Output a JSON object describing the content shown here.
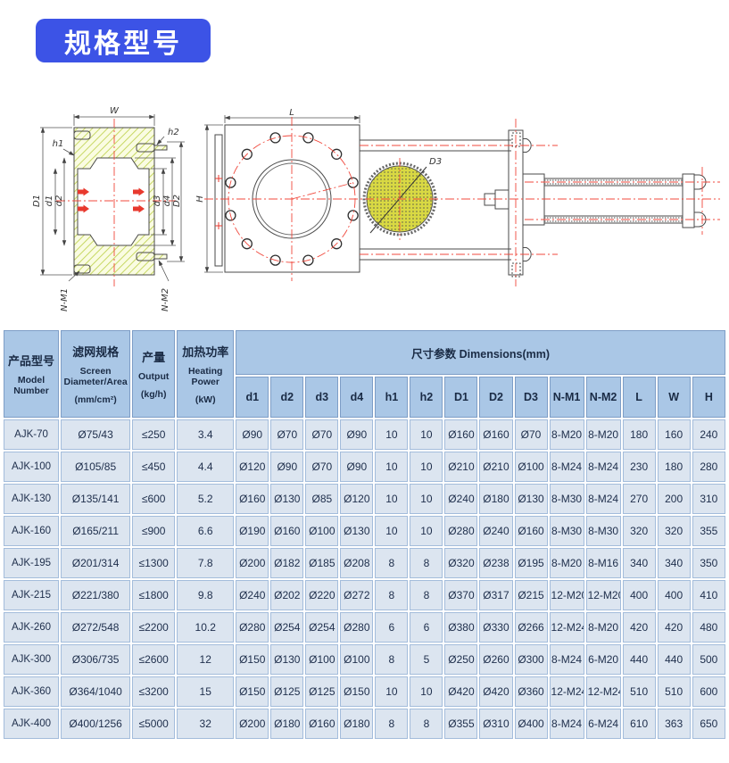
{
  "page": {
    "title": "规格型号"
  },
  "colors": {
    "title_bg": "#3c53e6",
    "table_header_bg": "#aac7e6",
    "table_cell_bg": "#dce5f0",
    "centerline_red": "#f0483c",
    "hatch_green": "#bfd24e",
    "screen_yellow": "#d9d943"
  },
  "drawing": {
    "labels": {
      "w": "W",
      "h1": "h1",
      "h2": "h2",
      "D1": "D1",
      "d1": "d1",
      "d2": "d2",
      "d3": "d3",
      "d4": "d4",
      "D2": "D2",
      "nm1": "N-M1",
      "nm2": "N-M2",
      "l": "L",
      "h": "H",
      "D3": "D3"
    }
  },
  "table": {
    "headers": {
      "model_zh": "产品型号",
      "model_en": "Model Number",
      "screen_zh": "滤网规格",
      "screen_en": "Screen Diameter/Area",
      "screen_unit": "(mm/cm²)",
      "output_zh": "产量",
      "output_en": "Output",
      "output_unit": "(kg/h)",
      "heating_zh": "加热功率",
      "heating_en": "Heating Power",
      "heating_unit": "(kW)",
      "dimensions": "尺寸参数 Dimensions(mm)"
    },
    "dim_columns": [
      "d1",
      "d2",
      "d3",
      "d4",
      "h1",
      "h2",
      "D1",
      "D2",
      "D3",
      "N-M1",
      "N-M2",
      "L",
      "W",
      "H"
    ],
    "rows": [
      [
        "AJK-70",
        "Ø75/43",
        "≤250",
        "3.4",
        "Ø90",
        "Ø70",
        "Ø70",
        "Ø90",
        "10",
        "10",
        "Ø160",
        "Ø160",
        "Ø70",
        "8-M20",
        "8-M20",
        "180",
        "160",
        "240"
      ],
      [
        "AJK-100",
        "Ø105/85",
        "≤450",
        "4.4",
        "Ø120",
        "Ø90",
        "Ø70",
        "Ø90",
        "10",
        "10",
        "Ø210",
        "Ø210",
        "Ø100",
        "8-M24",
        "8-M24",
        "230",
        "180",
        "280"
      ],
      [
        "AJK-130",
        "Ø135/141",
        "≤600",
        "5.2",
        "Ø160",
        "Ø130",
        "Ø85",
        "Ø120",
        "10",
        "10",
        "Ø240",
        "Ø180",
        "Ø130",
        "8-M30",
        "8-M24",
        "270",
        "200",
        "310"
      ],
      [
        "AJK-160",
        "Ø165/211",
        "≤900",
        "6.6",
        "Ø190",
        "Ø160",
        "Ø100",
        "Ø130",
        "10",
        "10",
        "Ø280",
        "Ø240",
        "Ø160",
        "8-M30",
        "8-M30",
        "320",
        "320",
        "355"
      ],
      [
        "AJK-195",
        "Ø201/314",
        "≤1300",
        "7.8",
        "Ø200",
        "Ø182",
        "Ø185",
        "Ø208",
        "8",
        "8",
        "Ø320",
        "Ø238",
        "Ø195",
        "8-M20",
        "8-M16",
        "340",
        "340",
        "350"
      ],
      [
        "AJK-215",
        "Ø221/380",
        "≤1800",
        "9.8",
        "Ø240",
        "Ø202",
        "Ø220",
        "Ø272",
        "8",
        "8",
        "Ø370",
        "Ø317",
        "Ø215",
        "12-M20",
        "12-M20",
        "400",
        "400",
        "410"
      ],
      [
        "AJK-260",
        "Ø272/548",
        "≤2200",
        "10.2",
        "Ø280",
        "Ø254",
        "Ø254",
        "Ø280",
        "6",
        "6",
        "Ø380",
        "Ø330",
        "Ø266",
        "12-M24",
        "8-M20",
        "420",
        "420",
        "480"
      ],
      [
        "AJK-300",
        "Ø306/735",
        "≤2600",
        "12",
        "Ø150",
        "Ø130",
        "Ø100",
        "Ø100",
        "8",
        "5",
        "Ø250",
        "Ø260",
        "Ø300",
        "8-M24",
        "6-M20",
        "440",
        "440",
        "500"
      ],
      [
        "AJK-360",
        "Ø364/1040",
        "≤3200",
        "15",
        "Ø150",
        "Ø125",
        "Ø125",
        "Ø150",
        "10",
        "10",
        "Ø420",
        "Ø420",
        "Ø360",
        "12-M24",
        "12-M24",
        "510",
        "510",
        "600"
      ],
      [
        "AJK-400",
        "Ø400/1256",
        "≤5000",
        "32",
        "Ø200",
        "Ø180",
        "Ø160",
        "Ø180",
        "8",
        "8",
        "Ø355",
        "Ø310",
        "Ø400",
        "8-M24",
        "6-M24",
        "610",
        "363",
        "650"
      ]
    ]
  }
}
